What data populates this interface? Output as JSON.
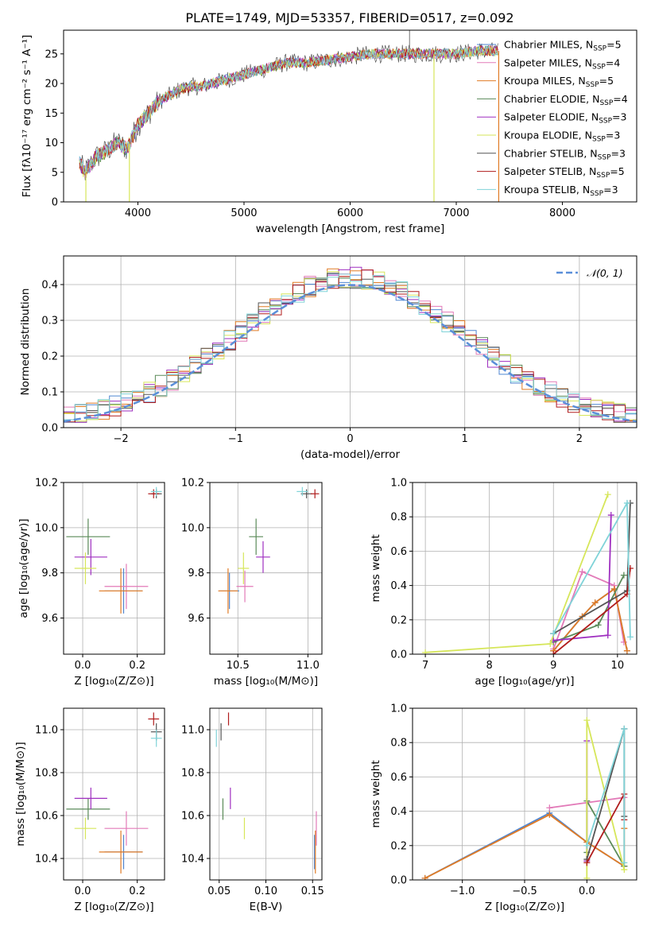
{
  "colors": {
    "Chabrier MILES": "#4f86d1",
    "Salpeter MILES": "#e27ab8",
    "Kroupa MILES": "#e07b25",
    "Chabrier ELODIE": "#5a8a58",
    "Salpeter ELODIE": "#9f2fc0",
    "Kroupa ELODIE": "#d6e65a",
    "Chabrier STELIB": "#555555",
    "Salpeter STELIB": "#b01c1c",
    "Kroupa STELIB": "#7fd3d8",
    "normal": "#5b8fd9"
  },
  "chart_data": [
    {
      "id": "spectrum",
      "type": "line",
      "title": "PLATE=1749, MJD=53357, FIBERID=0517, z=0.092",
      "xlabel": "wavelength [Angstrom, rest frame]",
      "ylabel": "Flux [fλ10⁻¹⁷ erg cm⁻² s⁻¹ A⁻¹]",
      "xlim": [
        3300,
        8700
      ],
      "ylim": [
        0,
        29
      ],
      "xticks": [
        4000,
        5000,
        6000,
        7000,
        8000
      ],
      "yticks": [
        0,
        5,
        10,
        15,
        20,
        25
      ],
      "legend": {
        "location": "top-right",
        "entries": [
          {
            "name": "Chabrier MILES",
            "nssp": "5"
          },
          {
            "name": "Salpeter MILES",
            "nssp": "4"
          },
          {
            "name": "Kroupa MILES",
            "nssp": "5"
          },
          {
            "name": "Chabrier ELODIE",
            "nssp": "4"
          },
          {
            "name": "Salpeter ELODIE",
            "nssp": "3"
          },
          {
            "name": "Kroupa ELODIE",
            "nssp": "3"
          },
          {
            "name": "Chabrier STELIB",
            "nssp": "3"
          },
          {
            "name": "Salpeter STELIB",
            "nssp": "5"
          },
          {
            "name": "Kroupa STELIB",
            "nssp": "3"
          }
        ]
      },
      "continuum": {
        "x": [
          3450,
          3500,
          3600,
          3700,
          3800,
          3900,
          4000,
          4100,
          4200,
          4300,
          4400,
          4500,
          4600,
          4800,
          5000,
          5200,
          5400,
          5600,
          5800,
          6000,
          6200,
          6400,
          6600,
          6800,
          7000,
          7200,
          7400
        ],
        "y": [
          6.5,
          5.0,
          7.5,
          8.5,
          10.0,
          9.0,
          13.0,
          15.0,
          17.0,
          18.0,
          19.0,
          19.5,
          19.5,
          20.5,
          21.5,
          22.5,
          23.5,
          23.5,
          24.0,
          24.5,
          25.0,
          25.0,
          25.0,
          25.0,
          25.0,
          25.5,
          25.5
        ]
      },
      "spikes": [
        {
          "x": 3510,
          "y": 0
        },
        {
          "x": 3920,
          "y": 0
        },
        {
          "x": 6560,
          "y": 29
        },
        {
          "x": 6790,
          "y": 0
        },
        {
          "x": 7400,
          "y": 0
        }
      ]
    },
    {
      "id": "residuals",
      "type": "step",
      "xlabel": "(data-model)/error",
      "ylabel": "Normed distribution",
      "xlim": [
        -2.5,
        2.5
      ],
      "ylim": [
        0,
        0.48
      ],
      "xticks": [
        -2,
        -1,
        0,
        1,
        2
      ],
      "yticks": [
        0.0,
        0.1,
        0.2,
        0.3,
        0.4
      ],
      "bin_width": 0.1,
      "legend": {
        "location": "top-right",
        "entries": [
          {
            "name": "𝒩(0, 1)"
          }
        ]
      }
    },
    {
      "id": "age_vs_Z",
      "type": "errorbar",
      "xlabel": "Z [log₁₀(Z/Z⊙)]",
      "ylabel": "age  [log₁₀(age/yr)]",
      "xlim": [
        -0.07,
        0.3
      ],
      "ylim": [
        9.44,
        10.2
      ],
      "xticks": [
        0.0,
        0.2
      ],
      "yticks": [
        9.6,
        9.8,
        10.0,
        10.2
      ],
      "points": [
        {
          "model": "Chabrier MILES",
          "x": 0.15,
          "y": 9.72,
          "xerr": 0.07,
          "yerr": 0.1
        },
        {
          "model": "Salpeter MILES",
          "x": 0.16,
          "y": 9.74,
          "xerr": 0.08,
          "yerr": 0.1
        },
        {
          "model": "Kroupa MILES",
          "x": 0.14,
          "y": 9.72,
          "xerr": 0.08,
          "yerr": 0.1
        },
        {
          "model": "Chabrier ELODIE",
          "x": 0.02,
          "y": 9.96,
          "xerr": 0.08,
          "yerr": 0.08
        },
        {
          "model": "Salpeter ELODIE",
          "x": 0.03,
          "y": 9.87,
          "xerr": 0.06,
          "yerr": 0.08
        },
        {
          "model": "Kroupa ELODIE",
          "x": 0.01,
          "y": 9.82,
          "xerr": 0.04,
          "yerr": 0.07
        },
        {
          "model": "Chabrier STELIB",
          "x": 0.27,
          "y": 10.15,
          "xerr": 0.02,
          "yerr": 0.02
        },
        {
          "model": "Salpeter STELIB",
          "x": 0.26,
          "y": 10.15,
          "xerr": 0.02,
          "yerr": 0.02
        },
        {
          "model": "Kroupa STELIB",
          "x": 0.27,
          "y": 10.16,
          "xerr": 0.02,
          "yerr": 0.02
        }
      ]
    },
    {
      "id": "age_vs_mass",
      "type": "errorbar",
      "xlabel": "mass [log₁₀(M/M⊙)]",
      "ylabel": "",
      "xlim": [
        10.3,
        11.1
      ],
      "ylim": [
        9.44,
        10.2
      ],
      "xticks": [
        10.5,
        11.0
      ],
      "yticks": [
        9.6,
        9.8,
        10.0,
        10.2
      ],
      "points": [
        {
          "model": "Chabrier MILES",
          "x": 10.44,
          "y": 9.72,
          "xerr": 0.07,
          "yerr": 0.08
        },
        {
          "model": "Salpeter MILES",
          "x": 10.55,
          "y": 9.74,
          "xerr": 0.06,
          "yerr": 0.07
        },
        {
          "model": "Kroupa MILES",
          "x": 10.43,
          "y": 9.72,
          "xerr": 0.07,
          "yerr": 0.1
        },
        {
          "model": "Chabrier ELODIE",
          "x": 10.63,
          "y": 9.96,
          "xerr": 0.05,
          "yerr": 0.08
        },
        {
          "model": "Salpeter ELODIE",
          "x": 10.68,
          "y": 9.87,
          "xerr": 0.05,
          "yerr": 0.07
        },
        {
          "model": "Kroupa ELODIE",
          "x": 10.54,
          "y": 9.82,
          "xerr": 0.04,
          "yerr": 0.07
        },
        {
          "model": "Chabrier STELIB",
          "x": 10.99,
          "y": 10.15,
          "xerr": 0.04,
          "yerr": 0.02
        },
        {
          "model": "Salpeter STELIB",
          "x": 11.05,
          "y": 10.15,
          "xerr": 0.03,
          "yerr": 0.02
        },
        {
          "model": "Kroupa STELIB",
          "x": 10.96,
          "y": 10.16,
          "xerr": 0.04,
          "yerr": 0.02
        }
      ]
    },
    {
      "id": "weight_vs_age",
      "type": "line",
      "xlabel": "age  [log₁₀(age/yr)]",
      "ylabel": "mass weight",
      "xlim": [
        6.8,
        10.3
      ],
      "ylim": [
        0,
        1
      ],
      "xticks": [
        7,
        8,
        9,
        10
      ],
      "yticks": [
        0.0,
        0.2,
        0.4,
        0.6,
        0.8,
        1.0
      ],
      "series": [
        {
          "model": "Chabrier MILES",
          "x": [
            9.0,
            9.45,
            9.65,
            9.95,
            10.15
          ],
          "y": [
            0.02,
            0.22,
            0.3,
            0.38,
            0.02
          ]
        },
        {
          "model": "Salpeter MILES",
          "x": [
            9.0,
            9.45,
            9.95,
            10.1
          ],
          "y": [
            0.03,
            0.48,
            0.4,
            0.07
          ]
        },
        {
          "model": "Kroupa MILES",
          "x": [
            9.0,
            9.45,
            9.65,
            9.95,
            10.15
          ],
          "y": [
            0.02,
            0.22,
            0.3,
            0.38,
            0.02
          ]
        },
        {
          "model": "Chabrier ELODIE",
          "x": [
            9.0,
            9.7,
            10.1
          ],
          "y": [
            0.07,
            0.17,
            0.46
          ]
        },
        {
          "model": "Salpeter ELODIE",
          "x": [
            9.0,
            9.85,
            9.9
          ],
          "y": [
            0.08,
            0.11,
            0.81
          ]
        },
        {
          "model": "Kroupa ELODIE",
          "x": [
            7.0,
            8.95,
            9.85
          ],
          "y": [
            0.01,
            0.06,
            0.93
          ]
        },
        {
          "model": "Chabrier STELIB",
          "x": [
            9.0,
            10.15,
            10.2
          ],
          "y": [
            0.12,
            0.37,
            0.88
          ]
        },
        {
          "model": "Salpeter STELIB",
          "x": [
            9.0,
            10.15,
            10.2
          ],
          "y": [
            0.0,
            0.35,
            0.5
          ]
        },
        {
          "model": "Kroupa STELIB",
          "x": [
            9.0,
            10.15,
            10.2
          ],
          "y": [
            0.12,
            0.88,
            0.1
          ]
        }
      ]
    },
    {
      "id": "mass_vs_Z",
      "type": "errorbar",
      "xlabel": "Z [log₁₀(Z/Z⊙)]",
      "ylabel": "mass [log₁₀(M/M⊙)]",
      "xlim": [
        -0.07,
        0.3
      ],
      "ylim": [
        10.3,
        11.1
      ],
      "xticks": [
        0.0,
        0.2
      ],
      "yticks": [
        10.4,
        10.6,
        10.8,
        11.0
      ],
      "points": [
        {
          "model": "Chabrier MILES",
          "x": 0.15,
          "y": 10.43,
          "xerr": 0.07,
          "yerr": 0.08
        },
        {
          "model": "Salpeter MILES",
          "x": 0.16,
          "y": 10.54,
          "xerr": 0.08,
          "yerr": 0.08
        },
        {
          "model": "Kroupa MILES",
          "x": 0.14,
          "y": 10.43,
          "xerr": 0.08,
          "yerr": 0.1
        },
        {
          "model": "Chabrier ELODIE",
          "x": 0.02,
          "y": 10.63,
          "xerr": 0.08,
          "yerr": 0.05
        },
        {
          "model": "Salpeter ELODIE",
          "x": 0.03,
          "y": 10.68,
          "xerr": 0.06,
          "yerr": 0.05
        },
        {
          "model": "Kroupa ELODIE",
          "x": 0.01,
          "y": 10.54,
          "xerr": 0.04,
          "yerr": 0.05
        },
        {
          "model": "Chabrier STELIB",
          "x": 0.27,
          "y": 10.99,
          "xerr": 0.02,
          "yerr": 0.04
        },
        {
          "model": "Salpeter STELIB",
          "x": 0.26,
          "y": 11.05,
          "xerr": 0.02,
          "yerr": 0.03
        },
        {
          "model": "Kroupa STELIB",
          "x": 0.27,
          "y": 10.96,
          "xerr": 0.02,
          "yerr": 0.04
        }
      ]
    },
    {
      "id": "mass_vs_ebv",
      "type": "errorbar",
      "xlabel": "E(B-V)",
      "ylabel": "",
      "xlim": [
        0.04,
        0.16
      ],
      "ylim": [
        10.3,
        11.1
      ],
      "xticks": [
        0.05,
        0.1,
        0.15
      ],
      "yticks": [
        10.4,
        10.6,
        10.8,
        11.0
      ],
      "points": [
        {
          "model": "Chabrier MILES",
          "x": 0.152,
          "y": 10.43,
          "xerr": 0,
          "yerr": 0.08
        },
        {
          "model": "Salpeter MILES",
          "x": 0.154,
          "y": 10.54,
          "xerr": 0,
          "yerr": 0.08
        },
        {
          "model": "Kroupa MILES",
          "x": 0.153,
          "y": 10.43,
          "xerr": 0,
          "yerr": 0.1
        },
        {
          "model": "Chabrier ELODIE",
          "x": 0.054,
          "y": 10.63,
          "xerr": 0,
          "yerr": 0.05
        },
        {
          "model": "Salpeter ELODIE",
          "x": 0.062,
          "y": 10.68,
          "xerr": 0,
          "yerr": 0.05
        },
        {
          "model": "Kroupa ELODIE",
          "x": 0.077,
          "y": 10.54,
          "xerr": 0,
          "yerr": 0.05
        },
        {
          "model": "Chabrier STELIB",
          "x": 0.052,
          "y": 10.99,
          "xerr": 0,
          "yerr": 0.04
        },
        {
          "model": "Salpeter STELIB",
          "x": 0.06,
          "y": 11.05,
          "xerr": 0,
          "yerr": 0.03
        },
        {
          "model": "Kroupa STELIB",
          "x": 0.047,
          "y": 10.96,
          "xerr": 0,
          "yerr": 0.04
        }
      ]
    },
    {
      "id": "weight_vs_Z",
      "type": "line",
      "xlabel": "Z [log₁₀(Z/Z⊙)]",
      "ylabel": "mass weight",
      "xlim": [
        -1.4,
        0.4
      ],
      "ylim": [
        0,
        1
      ],
      "xticks": [
        -1.0,
        -0.5,
        0.0
      ],
      "yticks": [
        0.0,
        0.2,
        0.4,
        0.6,
        0.8,
        1.0
      ],
      "series": [
        {
          "model": "Chabrier MILES",
          "x": [
            -1.3,
            -0.3,
            0.0,
            0.3
          ],
          "y": [
            0.01,
            0.39,
            0.22,
            0.08
          ]
        },
        {
          "model": "Salpeter MILES",
          "x": [
            -0.3,
            0.3
          ],
          "y": [
            0.42,
            0.48
          ]
        },
        {
          "model": "Kroupa MILES",
          "x": [
            -1.3,
            -0.3,
            0.0,
            0.3,
            0.3
          ],
          "y": [
            0.01,
            0.38,
            0.22,
            0.08,
            0.3
          ]
        },
        {
          "model": "Chabrier ELODIE",
          "x": [
            0.0,
            0.0,
            0.3
          ],
          "y": [
            0.16,
            0.46,
            0.08
          ]
        },
        {
          "model": "Salpeter ELODIE",
          "x": [
            0.0,
            0.0
          ],
          "y": [
            0.11,
            0.81
          ]
        },
        {
          "model": "Kroupa ELODIE",
          "x": [
            0.0,
            0.0,
            0.3
          ],
          "y": [
            0.01,
            0.93,
            0.06
          ]
        },
        {
          "model": "Chabrier STELIB",
          "x": [
            0.0,
            0.3,
            0.3
          ],
          "y": [
            0.12,
            0.88,
            0.37
          ]
        },
        {
          "model": "Salpeter STELIB",
          "x": [
            0.0,
            0.3,
            0.3
          ],
          "y": [
            0.1,
            0.5,
            0.35
          ]
        },
        {
          "model": "Kroupa STELIB",
          "x": [
            0.0,
            0.3,
            0.3
          ],
          "y": [
            0.2,
            0.88,
            0.1
          ]
        }
      ]
    }
  ]
}
